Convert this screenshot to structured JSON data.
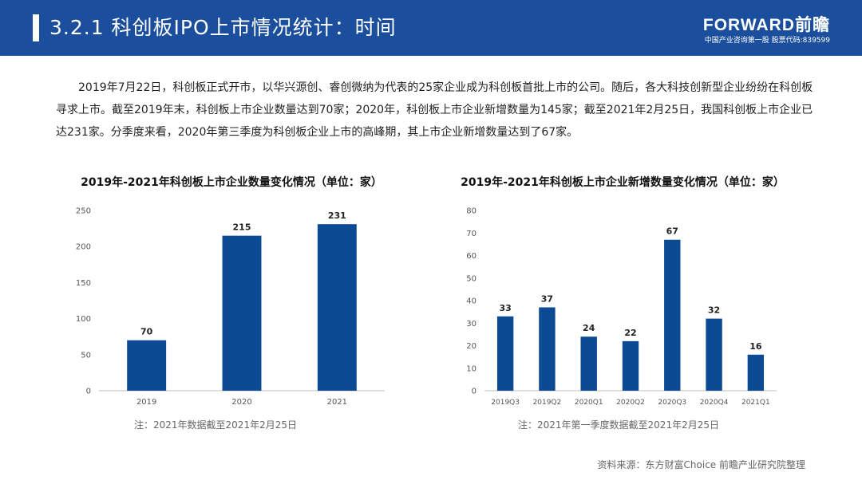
{
  "header": {
    "title": "3.2.1 科创板IPO上市情况统计：时间",
    "logo_main": "FORWARD前瞻",
    "logo_sub": "中国产业咨询第一股 股票代码:839599"
  },
  "intro_text": "2019年7月22日，科创板正式开市，以华兴源创、睿创微纳为代表的25家企业成为科创板首批上市的公司。随后，各大科技创新型企业纷纷在科创板寻求上市。截至2019年末，科创板上市企业数量达到70家；2020年，科创板上市企业新增数量为145家；截至2021年2月25日，我国科创板上市企业已达231家。分季度来看，2020年第三季度为科创板企业上市的高峰期，其上市企业新增数量达到了67家。",
  "source": "资料来源：东方财富Choice 前瞻产业研究院整理",
  "colors": {
    "header": "#1b4e9c",
    "bar": "#0d4a94"
  },
  "chart_data": [
    {
      "type": "bar",
      "title": "2019年-2021年科创板上市企业数量变化情况（单位：家）",
      "categories": [
        "2019",
        "2020",
        "2021"
      ],
      "values": [
        70,
        215,
        231
      ],
      "yticks": [
        0,
        50,
        100,
        150,
        200,
        250
      ],
      "ylim": [
        0,
        250
      ],
      "grid": false,
      "note": "注：2021年数据截至2021年2月25日"
    },
    {
      "type": "bar",
      "title": "2019年-2021年科创板上市企业新增数量变化情况（单位：家）",
      "categories": [
        "2019Q3",
        "2019Q2",
        "2020Q1",
        "2020Q2",
        "2020Q3",
        "2020Q4",
        "2021Q1"
      ],
      "values": [
        33,
        37,
        24,
        22,
        67,
        32,
        16
      ],
      "yticks": [
        0,
        10,
        20,
        30,
        40,
        50,
        60,
        70,
        80
      ],
      "ylim": [
        0,
        80
      ],
      "grid": false,
      "note": "注：2021年第一季度数据截至2021年2月25日"
    }
  ]
}
